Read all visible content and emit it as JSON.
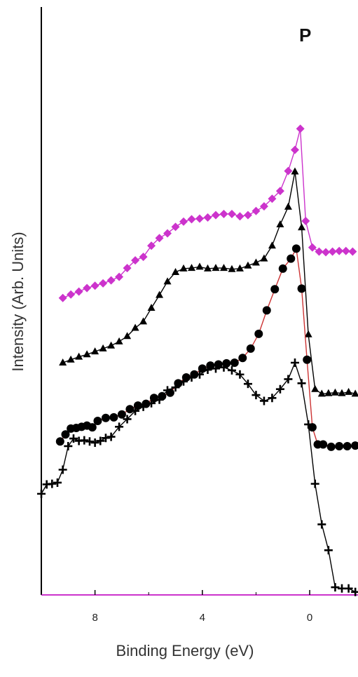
{
  "chart_data": {
    "type": "line",
    "panel_label": "P",
    "xlabel": "Binding Energy (eV)",
    "ylabel": "Intensity (Arb. Units)",
    "x_reversed": true,
    "xlim": [
      10,
      -1.8
    ],
    "ylim": [
      0,
      100
    ],
    "x_ticks": [
      8,
      4,
      0
    ],
    "x_minor_ticks": [
      10,
      6,
      2
    ],
    "y_ticks_shown": false,
    "grid": false,
    "legend": "none",
    "colors": {
      "x_axis": "#cc33cc",
      "y_axis": "#000000"
    },
    "series": [
      {
        "marker": "diamond",
        "color": "#cc33cc",
        "line_color": "#cc33cc",
        "x": [
          9.2,
          8.9,
          8.6,
          8.3,
          8.0,
          7.7,
          7.4,
          7.1,
          6.8,
          6.5,
          6.2,
          5.9,
          5.6,
          5.3,
          5.0,
          4.7,
          4.4,
          4.1,
          3.8,
          3.5,
          3.2,
          2.9,
          2.6,
          2.3,
          2.0,
          1.7,
          1.4,
          1.1,
          0.8,
          0.55,
          0.35,
          0.15,
          -0.1,
          -0.35,
          -0.6,
          -0.85,
          -1.1,
          -1.35,
          -1.6
        ],
        "y": [
          50.5,
          51.1,
          51.6,
          52.2,
          52.6,
          53.0,
          53.5,
          54.1,
          55.6,
          56.9,
          57.5,
          59.4,
          60.7,
          61.5,
          62.6,
          63.5,
          63.9,
          64.0,
          64.2,
          64.6,
          64.8,
          64.8,
          64.4,
          64.6,
          65.3,
          66.1,
          67.4,
          68.7,
          72.1,
          75.7,
          79.3,
          63.6,
          59.1,
          58.4,
          58.3,
          58.4,
          58.5,
          58.5,
          58.4
        ]
      },
      {
        "marker": "triangle",
        "color": "#000000",
        "line_color": "#000000",
        "x": [
          9.2,
          8.9,
          8.6,
          8.3,
          8.0,
          7.7,
          7.4,
          7.1,
          6.8,
          6.5,
          6.2,
          5.9,
          5.6,
          5.3,
          5.0,
          4.7,
          4.4,
          4.1,
          3.8,
          3.5,
          3.2,
          2.9,
          2.6,
          2.3,
          2.0,
          1.7,
          1.4,
          1.1,
          0.8,
          0.55,
          0.3,
          0.05,
          -0.2,
          -0.45,
          -0.7,
          -0.95,
          -1.2,
          -1.45,
          -1.7
        ],
        "y": [
          39.5,
          40.0,
          40.5,
          40.9,
          41.4,
          41.9,
          42.4,
          43.1,
          44.0,
          45.4,
          46.5,
          48.8,
          51.0,
          53.3,
          54.9,
          55.5,
          55.6,
          55.8,
          55.5,
          55.6,
          55.6,
          55.4,
          55.5,
          56.0,
          56.5,
          57.2,
          59.4,
          63.0,
          66.0,
          72.0,
          62.5,
          44.3,
          35.0,
          34.2,
          34.3,
          34.4,
          34.3,
          34.5,
          34.2
        ]
      },
      {
        "marker": "circle",
        "color": "#000000",
        "line_color": "#cc3333",
        "x": [
          9.3,
          9.1,
          8.9,
          8.7,
          8.5,
          8.3,
          8.1,
          7.9,
          7.6,
          7.3,
          7.0,
          6.7,
          6.4,
          6.1,
          5.8,
          5.5,
          5.2,
          4.9,
          4.6,
          4.3,
          4.0,
          3.7,
          3.4,
          3.1,
          2.8,
          2.5,
          2.2,
          1.9,
          1.6,
          1.3,
          1.0,
          0.7,
          0.5,
          0.3,
          0.1,
          -0.1,
          -0.3,
          -0.5,
          -0.8,
          -1.1,
          -1.4,
          -1.7
        ],
        "y": [
          26.1,
          27.3,
          28.3,
          28.4,
          28.6,
          28.8,
          28.5,
          29.6,
          30.1,
          30.2,
          30.7,
          31.6,
          32.2,
          32.5,
          33.5,
          33.8,
          34.4,
          36.0,
          37.0,
          37.5,
          38.5,
          39.0,
          39.2,
          39.4,
          39.5,
          40.3,
          41.9,
          44.4,
          48.4,
          52.0,
          55.5,
          57.2,
          58.9,
          52.1,
          40.0,
          28.5,
          25.6,
          25.6,
          25.2,
          25.3,
          25.3,
          25.4
        ]
      },
      {
        "marker": "cross",
        "color": "#000000",
        "line_color": "#000000",
        "x": [
          10.0,
          9.8,
          9.6,
          9.4,
          9.2,
          9.0,
          8.8,
          8.6,
          8.4,
          8.2,
          8.0,
          7.8,
          7.6,
          7.4,
          7.1,
          6.8,
          6.5,
          6.2,
          5.9,
          5.6,
          5.3,
          5.0,
          4.7,
          4.4,
          4.1,
          3.8,
          3.5,
          3.2,
          2.9,
          2.6,
          2.3,
          2.0,
          1.7,
          1.4,
          1.1,
          0.8,
          0.55,
          0.3,
          0.05,
          -0.2,
          -0.45,
          -0.7,
          -0.95,
          -1.2,
          -1.45,
          -1.7
        ],
        "y": [
          17.2,
          18.8,
          18.9,
          19.1,
          21.3,
          25.3,
          26.6,
          26.2,
          26.3,
          26.1,
          25.9,
          26.2,
          26.7,
          26.9,
          28.6,
          29.9,
          31.3,
          32.0,
          32.6,
          33.2,
          34.8,
          35.3,
          36.3,
          37.0,
          37.5,
          38.3,
          38.5,
          38.7,
          38.2,
          37.5,
          35.9,
          34.0,
          33.0,
          33.5,
          35.0,
          36.7,
          39.5,
          36.0,
          29.0,
          18.9,
          12.0,
          7.6,
          1.3,
          1.1,
          1.1,
          0.5
        ]
      }
    ]
  }
}
